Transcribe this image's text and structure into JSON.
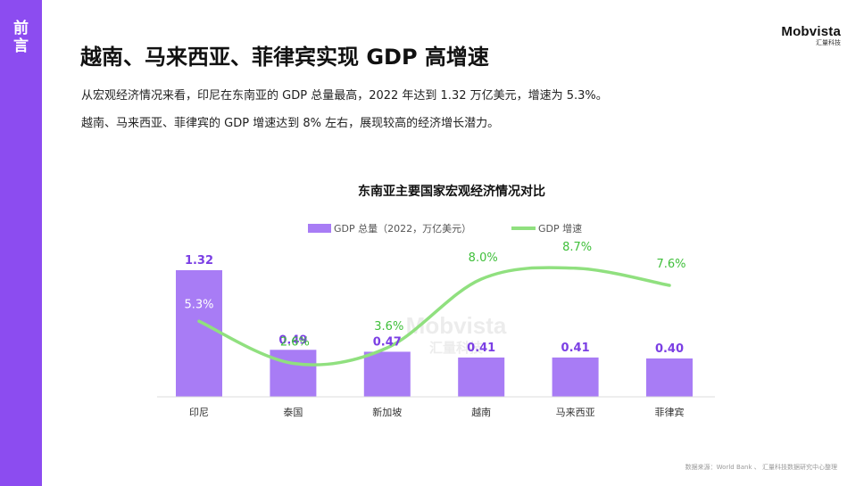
{
  "sidebar": {
    "label_line1": "前",
    "label_line2": "言"
  },
  "logo": {
    "main": "Mobvista",
    "sub": "汇量科技"
  },
  "page": {
    "title": "越南、马来西亚、菲律宾实现 GDP 高增速",
    "intro_line1": "从宏观经济情况来看，印尼在东南亚的 GDP 总量最高，2022 年达到 1.32 万亿美元，增速为 5.3%。",
    "intro_line2": "越南、马来西亚、菲律宾的 GDP 增速达到 8% 左右，展现较高的经济增长潜力。"
  },
  "watermark": {
    "main": "Mobvista",
    "sub": "汇量科技"
  },
  "chart_data": {
    "type": "bar",
    "title": "东南亚主要国家宏观经济情况对比",
    "categories": [
      "印尼",
      "泰国",
      "新加坡",
      "越南",
      "马来西亚",
      "菲律宾"
    ],
    "series": [
      {
        "name": "GDP 总量（2022，万亿美元）",
        "type": "bar",
        "values": [
          1.32,
          0.49,
          0.47,
          0.41,
          0.41,
          0.4
        ],
        "labels": [
          "1.32",
          "0.49",
          "0.47",
          "0.41",
          "0.41",
          "0.40"
        ],
        "color": "#a87cf5",
        "label_color": "#7b3fe4"
      },
      {
        "name": "GDP 增速",
        "type": "line",
        "values": [
          5.3,
          2.6,
          3.6,
          8.0,
          8.7,
          7.6
        ],
        "labels": [
          "5.3%",
          "2.6%",
          "3.6%",
          "8.0%",
          "8.7%",
          "7.6%"
        ],
        "color": "#90e07f",
        "label_color": "#3fbf3a",
        "label_inside_color": "#ffffff"
      }
    ],
    "legend_position": "top-center",
    "grid": false
  },
  "source": "数据来源：World Bank 、 汇量科技数据研究中心整理"
}
